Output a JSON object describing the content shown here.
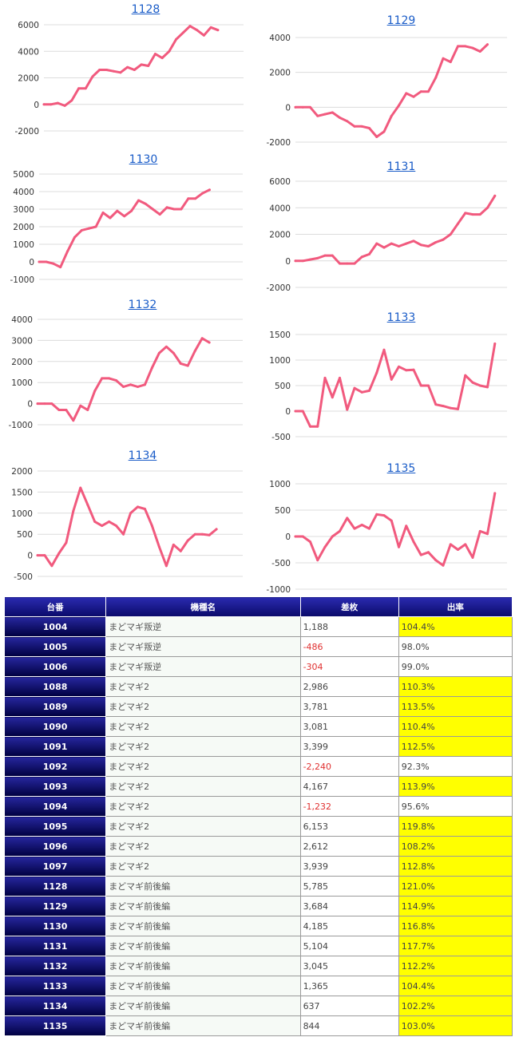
{
  "chart_data": [
    {
      "type": "line",
      "title": "1128",
      "yticks": [
        -2000,
        0,
        2000,
        4000,
        6000
      ],
      "ylim": [
        -2000,
        6000
      ],
      "values": [
        0,
        0,
        100,
        -100,
        300,
        1200,
        1200,
        2100,
        2600,
        2600,
        2500,
        2400,
        2800,
        2600,
        3000,
        2900,
        3800,
        3500,
        4000,
        4900,
        5400,
        5900,
        5600,
        5200,
        5800,
        5600
      ]
    },
    {
      "type": "line",
      "title": "1129",
      "yticks": [
        -2000,
        0,
        2000,
        4000
      ],
      "ylim": [
        -2000,
        4000
      ],
      "values": [
        0,
        0,
        0,
        -500,
        -400,
        -300,
        -600,
        -800,
        -1100,
        -1100,
        -1200,
        -1700,
        -1400,
        -500,
        100,
        800,
        600,
        900,
        900,
        1700,
        2800,
        2600,
        3500,
        3500,
        3400,
        3200,
        3600
      ]
    },
    {
      "type": "line",
      "title": "1130",
      "yticks": [
        -1000,
        0,
        1000,
        2000,
        3000,
        4000,
        5000
      ],
      "ylim": [
        -1000,
        5000
      ],
      "values": [
        0,
        0,
        -100,
        -300,
        600,
        1400,
        1800,
        1900,
        2000,
        2800,
        2500,
        2900,
        2600,
        2900,
        3500,
        3300,
        3000,
        2700,
        3100,
        3000,
        3000,
        3600,
        3600,
        3900,
        4100
      ]
    },
    {
      "type": "line",
      "title": "1131",
      "yticks": [
        -2000,
        0,
        2000,
        4000,
        6000
      ],
      "ylim": [
        -2000,
        6000
      ],
      "values": [
        0,
        0,
        100,
        200,
        400,
        400,
        -200,
        -200,
        -200,
        300,
        500,
        1300,
        1000,
        1300,
        1100,
        1300,
        1500,
        1200,
        1100,
        1400,
        1600,
        2000,
        2800,
        3600,
        3500,
        3500,
        4000,
        4900
      ]
    },
    {
      "type": "line",
      "title": "1132",
      "yticks": [
        -1000,
        0,
        1000,
        2000,
        3000,
        4000
      ],
      "ylim": [
        -1000,
        4000
      ],
      "values": [
        0,
        0,
        0,
        -300,
        -300,
        -800,
        -100,
        -300,
        600,
        1200,
        1200,
        1100,
        800,
        900,
        800,
        900,
        1700,
        2400,
        2700,
        2400,
        1900,
        1800,
        2500,
        3100,
        2900
      ]
    },
    {
      "type": "line",
      "title": "1133",
      "yticks": [
        -500,
        0,
        500,
        1000,
        1500
      ],
      "ylim": [
        -500,
        1500
      ],
      "values": [
        0,
        0,
        -300,
        -300,
        650,
        270,
        650,
        30,
        450,
        370,
        400,
        750,
        1200,
        620,
        870,
        800,
        810,
        500,
        500,
        130,
        100,
        60,
        40,
        700,
        560,
        500,
        470,
        1320
      ]
    },
    {
      "type": "line",
      "title": "1134",
      "yticks": [
        -500,
        0,
        500,
        1000,
        1500,
        2000
      ],
      "ylim": [
        -500,
        2000
      ],
      "values": [
        0,
        0,
        -250,
        50,
        300,
        1050,
        1600,
        1200,
        800,
        700,
        800,
        700,
        500,
        1000,
        1150,
        1100,
        700,
        200,
        -250,
        250,
        100,
        350,
        500,
        500,
        480,
        620
      ]
    },
    {
      "type": "line",
      "title": "1135",
      "yticks": [
        -1000,
        -500,
        0,
        500,
        1000
      ],
      "ylim": [
        -1000,
        1000
      ],
      "values": [
        0,
        0,
        -100,
        -450,
        -200,
        0,
        100,
        350,
        150,
        220,
        150,
        420,
        400,
        300,
        -200,
        200,
        -100,
        -350,
        -300,
        -450,
        -550,
        -150,
        -250,
        -150,
        -400,
        100,
        50,
        820
      ]
    }
  ],
  "table": {
    "headers": [
      "台番",
      "機種名",
      "差枚",
      "出率"
    ],
    "rows": [
      [
        "1004",
        "まどマギ叛逆",
        "1,188",
        "104.4%"
      ],
      [
        "1005",
        "まどマギ叛逆",
        "-486",
        "98.0%"
      ],
      [
        "1006",
        "まどマギ叛逆",
        "-304",
        "99.0%"
      ],
      [
        "1088",
        "まどマギ2",
        "2,986",
        "110.3%"
      ],
      [
        "1089",
        "まどマギ2",
        "3,781",
        "113.5%"
      ],
      [
        "1090",
        "まどマギ2",
        "3,081",
        "110.4%"
      ],
      [
        "1091",
        "まどマギ2",
        "3,399",
        "112.5%"
      ],
      [
        "1092",
        "まどマギ2",
        "-2,240",
        "92.3%"
      ],
      [
        "1093",
        "まどマギ2",
        "4,167",
        "113.9%"
      ],
      [
        "1094",
        "まどマギ2",
        "-1,232",
        "95.6%"
      ],
      [
        "1095",
        "まどマギ2",
        "6,153",
        "119.8%"
      ],
      [
        "1096",
        "まどマギ2",
        "2,612",
        "108.2%"
      ],
      [
        "1097",
        "まどマギ2",
        "3,939",
        "112.8%"
      ],
      [
        "1128",
        "まどマギ前後編",
        "5,785",
        "121.0%"
      ],
      [
        "1129",
        "まどマギ前後編",
        "3,684",
        "114.9%"
      ],
      [
        "1130",
        "まどマギ前後編",
        "4,185",
        "116.8%"
      ],
      [
        "1131",
        "まどマギ前後編",
        "5,104",
        "117.7%"
      ],
      [
        "1132",
        "まどマギ前後編",
        "3,045",
        "112.2%"
      ],
      [
        "1133",
        "まどマギ前後編",
        "1,365",
        "104.4%"
      ],
      [
        "1134",
        "まどマギ前後編",
        "637",
        "102.2%"
      ],
      [
        "1135",
        "まどマギ前後編",
        "844",
        "103.0%"
      ]
    ]
  },
  "colors": {
    "line": "#f15a7e",
    "highlight": "#ffff00",
    "negative": "#e03030",
    "header_bg": "#0a0a6a"
  }
}
